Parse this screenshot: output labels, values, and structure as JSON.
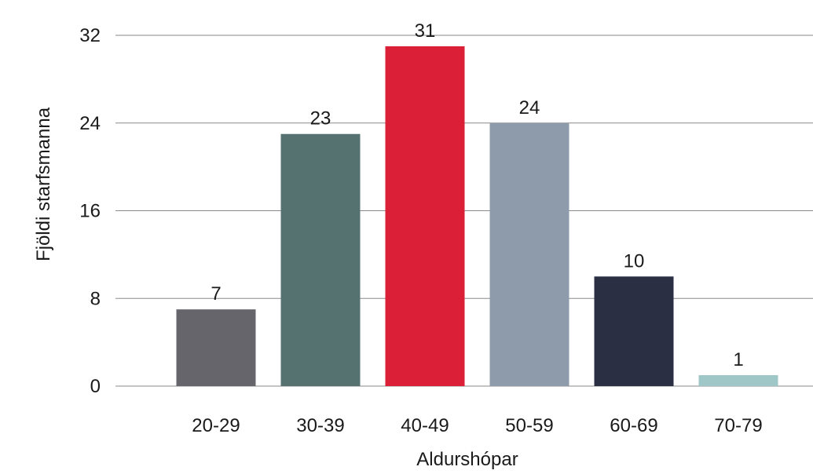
{
  "chart_data": {
    "type": "bar",
    "categories": [
      "20-29",
      "30-39",
      "40-49",
      "50-59",
      "60-69",
      "70-79"
    ],
    "values": [
      7,
      23,
      31,
      24,
      10,
      1
    ],
    "colors": [
      "#67656c",
      "#557271",
      "#da1f37",
      "#8e9bab",
      "#2a2f44",
      "#9fc7c8"
    ],
    "xlabel": "Aldurshópar",
    "ylabel": "Fjöldi starfsmanna",
    "ylim": [
      0,
      32
    ],
    "yticks": [
      0,
      8,
      16,
      24,
      32
    ],
    "grid": true,
    "data_labels": true
  }
}
